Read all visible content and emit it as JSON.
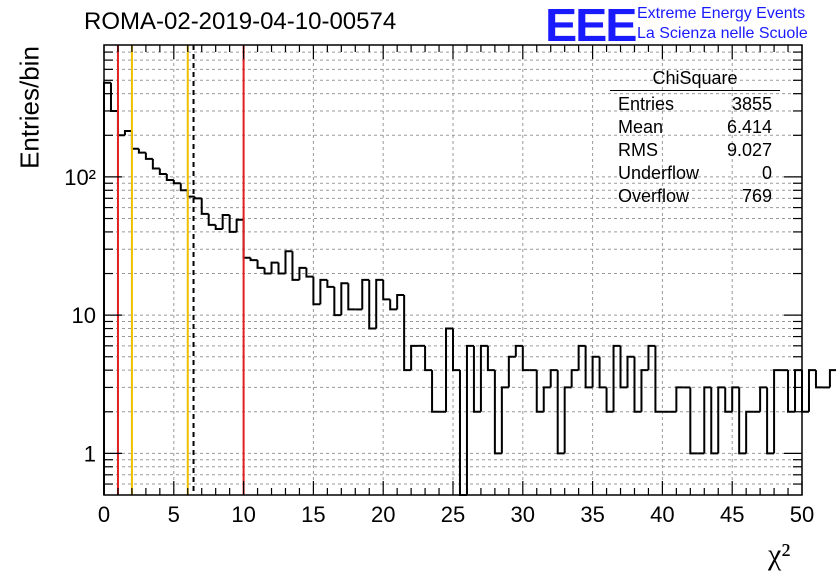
{
  "header": {
    "title": "ROMA-02-2019-04-10-00574",
    "logo_text": "EEE",
    "logo_line1": "Extreme Energy Events",
    "logo_line2": "La Scienza nelle Scuole",
    "logo_color": "#1a1aff"
  },
  "stats": {
    "name": "ChiSquare",
    "rows": [
      {
        "label": "Entries",
        "value": "3855"
      },
      {
        "label": "Mean",
        "value": "6.414"
      },
      {
        "label": "RMS",
        "value": "9.027"
      },
      {
        "label": "Underflow",
        "value": "0"
      },
      {
        "label": "Overflow",
        "value": "769"
      }
    ]
  },
  "chart_data": {
    "type": "histogram",
    "title": "ROMA-02-2019-04-10-00574",
    "xlabel": "χ²",
    "ylabel": "Entries/bin",
    "xlim": [
      0,
      50
    ],
    "ylim": [
      0.5,
      900
    ],
    "yscale": "log",
    "grid": true,
    "bin_width": 0.5,
    "x_ticks": [
      0,
      5,
      10,
      15,
      20,
      25,
      30,
      35,
      40,
      45,
      50
    ],
    "y_ticks": [
      1,
      10,
      100
    ],
    "y_tick_labels": [
      "1",
      "10",
      "10²"
    ],
    "values": [
      480,
      300,
      200,
      215,
      160,
      150,
      135,
      115,
      105,
      95,
      90,
      80,
      72,
      70,
      54,
      45,
      42,
      53,
      40,
      49,
      26,
      25,
      22,
      20,
      24,
      20,
      29,
      18,
      22,
      19,
      12,
      18,
      16,
      10,
      17,
      11,
      11,
      18,
      8,
      18,
      13,
      11,
      14,
      4,
      6,
      6,
      4,
      2,
      2,
      8,
      4,
      0,
      6,
      2,
      6,
      4,
      1,
      3,
      5,
      6,
      4,
      4,
      2,
      3,
      4,
      1,
      3,
      4,
      6,
      3,
      5,
      3,
      2,
      6,
      3,
      5,
      2,
      4,
      6,
      2,
      2,
      2,
      3,
      3,
      1,
      1,
      3,
      1,
      3,
      2,
      3,
      1,
      2,
      2,
      3,
      1,
      4,
      4,
      2,
      4,
      2,
      4,
      3,
      3,
      4
    ],
    "vertical_lines": [
      {
        "x": 1,
        "color": "#e02020",
        "style": "solid"
      },
      {
        "x": 2,
        "color": "#f0c000",
        "style": "solid"
      },
      {
        "x": 6,
        "color": "#f0c000",
        "style": "solid"
      },
      {
        "x": 6.414,
        "color": "#000000",
        "style": "dashed"
      },
      {
        "x": 10,
        "color": "#e02020",
        "style": "solid"
      }
    ]
  }
}
